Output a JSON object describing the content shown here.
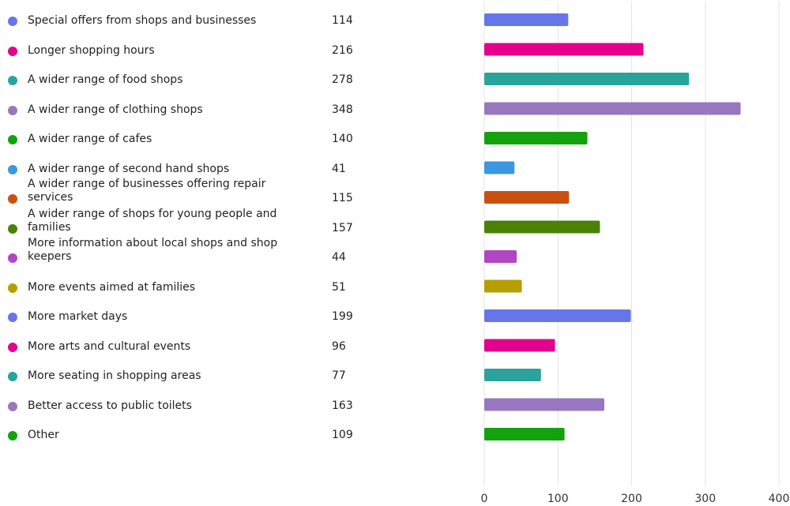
{
  "chart_data": {
    "type": "bar",
    "orientation": "horizontal",
    "categories": [
      "Special offers from shops and businesses",
      "Longer shopping hours",
      "A wider range of food shops",
      "A wider range of clothing shops",
      "A wider range of cafes",
      "A wider range of second hand shops",
      "A wider range of businesses offering repair services",
      "A wider range of shops for young people and families",
      "More information about local shops and shop keepers",
      "More events aimed at families",
      "More market days",
      "More arts and cultural events",
      "More seating in shopping areas",
      "Better access to public toilets",
      "Other"
    ],
    "values": [
      114,
      216,
      278,
      348,
      140,
      41,
      115,
      157,
      44,
      51,
      199,
      96,
      77,
      163,
      109
    ],
    "colors": [
      "#6577e8",
      "#e3008c",
      "#2aa39e",
      "#9877c1",
      "#13a10e",
      "#3b97e0",
      "#ca5010",
      "#498205",
      "#b146c2",
      "#b59e00",
      "#6577e8",
      "#e3008c",
      "#2aa39e",
      "#9877c1",
      "#13a10e"
    ],
    "xlim": [
      0,
      400
    ],
    "xticks": [
      0,
      100,
      200,
      300,
      400
    ],
    "grid": true,
    "legend": "left"
  }
}
